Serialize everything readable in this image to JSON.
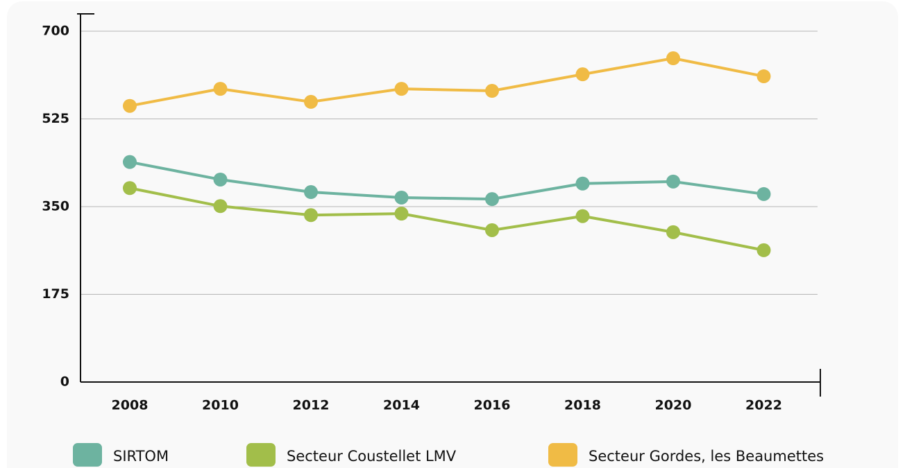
{
  "chart_data": {
    "type": "line",
    "categories": [
      "2008",
      "2010",
      "2012",
      "2014",
      "2016",
      "2018",
      "2020",
      "2022"
    ],
    "series": [
      {
        "name": "SIRTOM",
        "color": "#6db3a0",
        "values": [
          439,
          404,
          379,
          368,
          365,
          396,
          400,
          375
        ]
      },
      {
        "name": "Secteur Coustellet LMV",
        "color": "#a2be4a",
        "values": [
          387,
          351,
          333,
          336,
          303,
          331,
          299,
          263
        ]
      },
      {
        "name": "Secteur Gordes, les Beaumettes",
        "color": "#f0bb45",
        "values": [
          551,
          585,
          559,
          585,
          581,
          614,
          646,
          610
        ]
      }
    ],
    "ylim": [
      0,
      700
    ],
    "yticks": [
      0,
      175,
      350,
      525,
      700
    ],
    "grid": true
  }
}
